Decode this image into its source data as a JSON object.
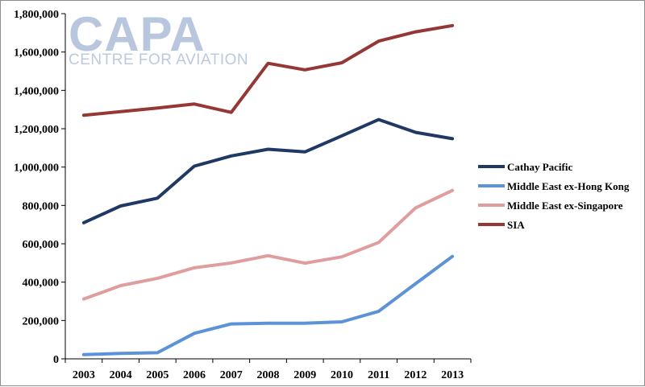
{
  "chart_data": {
    "type": "line",
    "title": "",
    "xlabel": "",
    "ylabel": "",
    "ylim": [
      0,
      1800000
    ],
    "y_tick_values": [
      0,
      200000,
      400000,
      600000,
      800000,
      1000000,
      1200000,
      1400000,
      1600000,
      1800000
    ],
    "y_tick_labels": [
      "0",
      "200,000",
      "400,000",
      "600,000",
      "800,000",
      "1,000,000",
      "1,200,000",
      "1,400,000",
      "1,600,000",
      "1,800,000"
    ],
    "categories": [
      "2003",
      "2004",
      "2005",
      "2006",
      "2007",
      "2008",
      "2009",
      "2010",
      "2011",
      "2012",
      "2013"
    ],
    "grid": false,
    "legend_position": "right",
    "series": [
      {
        "name": "Cathay Pacific",
        "color": "#1f3864",
        "values": [
          710000,
          797000,
          838000,
          1005000,
          1058000,
          1093000,
          1079000,
          1163000,
          1248000,
          1181000,
          1148000
        ]
      },
      {
        "name": "Middle East ex-Hong Kong",
        "color": "#5b93d6",
        "values": [
          22000,
          28000,
          32000,
          133000,
          182000,
          186000,
          186000,
          193000,
          248000,
          392000,
          534000
        ]
      },
      {
        "name": "Middle East ex-Singapore",
        "color": "#e09d9e",
        "values": [
          312000,
          382000,
          420000,
          475000,
          500000,
          538000,
          499000,
          532000,
          607000,
          787000,
          878000
        ]
      },
      {
        "name": "SIA",
        "color": "#953735",
        "values": [
          1270000,
          1289000,
          1308000,
          1329000,
          1285000,
          1541000,
          1507000,
          1544000,
          1657000,
          1705000,
          1738000
        ]
      }
    ]
  },
  "watermark": {
    "logo_text": "CAPA",
    "tagline": "CENTRE FOR AVIATION"
  }
}
